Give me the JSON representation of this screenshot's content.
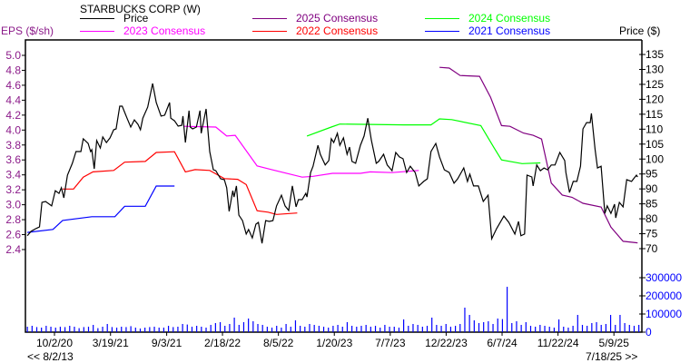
{
  "chart_data": {
    "type": "line",
    "title": "STARBUCKS CORP (W)",
    "left_axis_label": "EPS ($/sh)",
    "right_axis_label": "Price ($)",
    "date_range_start": "<< 8/2/13",
    "date_range_end": "7/18/25 >>",
    "x_unit": "decimal year",
    "x_range": [
      2020.53,
      2025.56
    ],
    "x_ticks": [
      {
        "label": "10/2/20",
        "x": 2020.753
      },
      {
        "label": "3/19/21",
        "x": 2021.214
      },
      {
        "label": "9/3/21",
        "x": 2021.676
      },
      {
        "label": "2/18/22",
        "x": 2022.135
      },
      {
        "label": "8/5/22",
        "x": 2022.595
      },
      {
        "label": "1/20/23",
        "x": 2023.055
      },
      {
        "label": "7/7/23",
        "x": 2023.515
      },
      {
        "label": "12/22/23",
        "x": 2023.975
      },
      {
        "label": "6/7/24",
        "x": 2024.435
      },
      {
        "label": "11/22/24",
        "x": 2024.895
      },
      {
        "label": "5/9/25",
        "x": 2025.355
      }
    ],
    "eps_axis": {
      "range": [
        2.4,
        5.0
      ],
      "ticks": [
        "2.4",
        "2.6",
        "2.8",
        "3.0",
        "3.2",
        "3.4",
        "3.6",
        "3.8",
        "4.0",
        "4.2",
        "4.4",
        "4.6",
        "4.8",
        "5.0"
      ]
    },
    "price_axis": {
      "range": [
        70,
        135
      ],
      "ticks": [
        "70",
        "75",
        "80",
        "85",
        "90",
        "95",
        "100",
        "105",
        "110",
        "115",
        "120",
        "125",
        "130",
        "135"
      ]
    },
    "volume_axis": {
      "range": [
        0,
        300000
      ],
      "ticks": [
        "0",
        "100000",
        "200000",
        "300000"
      ]
    },
    "colors": {
      "price": "#000000",
      "c2025": "#800080",
      "c2024": "#00ff00",
      "c2023": "#ff00ff",
      "c2022": "#ff0000",
      "c2021": "#0000ff",
      "volume": "#0000ff",
      "eps_axis": "#8b1a89"
    },
    "legend": [
      {
        "label": "Price",
        "key": "price"
      },
      {
        "label": "2025 Consensus",
        "key": "c2025"
      },
      {
        "label": "2024 Consensus",
        "key": "c2024"
      },
      {
        "label": "2023 Consensus",
        "key": "c2023"
      },
      {
        "label": "2022 Consensus",
        "key": "c2022"
      },
      {
        "label": "2021 Consensus",
        "key": "c2021"
      }
    ],
    "price": [
      [
        2020.53,
        74.3
      ],
      [
        2020.56,
        75.8
      ],
      [
        2020.6,
        76.7
      ],
      [
        2020.63,
        77.3
      ],
      [
        2020.65,
        85.5
      ],
      [
        2020.68,
        85.8
      ],
      [
        2020.73,
        84.3
      ],
      [
        2020.76,
        89.4
      ],
      [
        2020.79,
        88.5
      ],
      [
        2020.81,
        90.4
      ],
      [
        2020.83,
        87.0
      ],
      [
        2020.86,
        94.6
      ],
      [
        2020.9,
        98.6
      ],
      [
        2020.93,
        102.5
      ],
      [
        2020.97,
        102.5
      ],
      [
        2020.99,
        106.8
      ],
      [
        2021.03,
        105.2
      ],
      [
        2021.05,
        102.5
      ],
      [
        2021.06,
        103.1
      ],
      [
        2021.08,
        96.7
      ],
      [
        2021.1,
        106.2
      ],
      [
        2021.13,
        103.7
      ],
      [
        2021.15,
        107.4
      ],
      [
        2021.18,
        105.5
      ],
      [
        2021.21,
        107.1
      ],
      [
        2021.24,
        109.8
      ],
      [
        2021.26,
        110.1
      ],
      [
        2021.29,
        117.7
      ],
      [
        2021.31,
        117.7
      ],
      [
        2021.35,
        113.7
      ],
      [
        2021.38,
        110.7
      ],
      [
        2021.41,
        113.1
      ],
      [
        2021.44,
        111.6
      ],
      [
        2021.46,
        109.8
      ],
      [
        2021.48,
        113.7
      ],
      [
        2021.52,
        117.4
      ],
      [
        2021.56,
        125.3
      ],
      [
        2021.59,
        118.9
      ],
      [
        2021.63,
        114.4
      ],
      [
        2021.66,
        114.7
      ],
      [
        2021.7,
        118.9
      ],
      [
        2021.71,
        113.7
      ],
      [
        2021.74,
        112.8
      ],
      [
        2021.77,
        111.0
      ],
      [
        2021.8,
        111.3
      ],
      [
        2021.81,
        114.4
      ],
      [
        2021.83,
        105.5
      ],
      [
        2021.86,
        116.2
      ],
      [
        2021.87,
        110.7
      ],
      [
        2021.89,
        110.1
      ],
      [
        2021.92,
        110.7
      ],
      [
        2021.95,
        116.2
      ],
      [
        2021.96,
        108.6
      ],
      [
        2022.0,
        116.8
      ],
      [
        2022.03,
        102.5
      ],
      [
        2022.06,
        96.4
      ],
      [
        2022.08,
        96.1
      ],
      [
        2022.12,
        93.4
      ],
      [
        2022.15,
        93.1
      ],
      [
        2022.17,
        90.4
      ],
      [
        2022.19,
        82.5
      ],
      [
        2022.22,
        89.4
      ],
      [
        2022.23,
        87.3
      ],
      [
        2022.25,
        91.0
      ],
      [
        2022.27,
        81.2
      ],
      [
        2022.3,
        79.4
      ],
      [
        2022.33,
        74.9
      ],
      [
        2022.35,
        76.4
      ],
      [
        2022.38,
        73.6
      ],
      [
        2022.41,
        78.2
      ],
      [
        2022.43,
        78.8
      ],
      [
        2022.46,
        71.8
      ],
      [
        2022.49,
        79.4
      ],
      [
        2022.52,
        79.1
      ],
      [
        2022.55,
        79.4
      ],
      [
        2022.58,
        84.3
      ],
      [
        2022.62,
        87.9
      ],
      [
        2022.65,
        84.3
      ],
      [
        2022.68,
        82.8
      ],
      [
        2022.71,
        91.0
      ],
      [
        2022.74,
        84.0
      ],
      [
        2022.76,
        86.4
      ],
      [
        2022.79,
        86.4
      ],
      [
        2022.82,
        88.5
      ],
      [
        2022.83,
        87.3
      ],
      [
        2022.86,
        95.5
      ],
      [
        2022.88,
        97.6
      ],
      [
        2022.92,
        104.6
      ],
      [
        2022.94,
        101.6
      ],
      [
        2022.98,
        98.0
      ],
      [
        2023.01,
        99.5
      ],
      [
        2023.03,
        106.8
      ],
      [
        2023.05,
        105.5
      ],
      [
        2023.08,
        108.6
      ],
      [
        2023.1,
        104.6
      ],
      [
        2023.13,
        107.1
      ],
      [
        2023.16,
        101.6
      ],
      [
        2023.18,
        104.0
      ],
      [
        2023.2,
        99.2
      ],
      [
        2023.23,
        98.6
      ],
      [
        2023.27,
        104.6
      ],
      [
        2023.3,
        107.7
      ],
      [
        2023.33,
        113.7
      ],
      [
        2023.36,
        106.2
      ],
      [
        2023.4,
        98.6
      ],
      [
        2023.42,
        99.2
      ],
      [
        2023.46,
        101.6
      ],
      [
        2023.49,
        98.0
      ],
      [
        2023.53,
        96.1
      ],
      [
        2023.56,
        102.2
      ],
      [
        2023.59,
        100.7
      ],
      [
        2023.62,
        100.1
      ],
      [
        2023.65,
        95.5
      ],
      [
        2023.68,
        97.6
      ],
      [
        2023.72,
        95.5
      ],
      [
        2023.75,
        91.0
      ],
      [
        2023.79,
        92.5
      ],
      [
        2023.82,
        93.4
      ],
      [
        2023.85,
        102.5
      ],
      [
        2023.89,
        105.2
      ],
      [
        2023.92,
        100.7
      ],
      [
        2023.96,
        96.4
      ],
      [
        2024.0,
        95.5
      ],
      [
        2024.04,
        91.9
      ],
      [
        2024.07,
        93.4
      ],
      [
        2024.12,
        97.0
      ],
      [
        2024.15,
        92.5
      ],
      [
        2024.17,
        94.9
      ],
      [
        2024.2,
        91.0
      ],
      [
        2024.24,
        91.0
      ],
      [
        2024.28,
        85.8
      ],
      [
        2024.32,
        87.9
      ],
      [
        2024.35,
        73.3
      ],
      [
        2024.39,
        76.7
      ],
      [
        2024.45,
        80.9
      ],
      [
        2024.49,
        78.8
      ],
      [
        2024.54,
        74.9
      ],
      [
        2024.57,
        79.1
      ],
      [
        2024.59,
        74.3
      ],
      [
        2024.62,
        74.9
      ],
      [
        2024.64,
        94.6
      ],
      [
        2024.68,
        94.0
      ],
      [
        2024.69,
        91.0
      ],
      [
        2024.72,
        98.0
      ],
      [
        2024.75,
        96.1
      ],
      [
        2024.78,
        97.0
      ],
      [
        2024.81,
        96.4
      ],
      [
        2024.84,
        98.0
      ],
      [
        2024.87,
        98.0
      ],
      [
        2024.91,
        102.2
      ],
      [
        2024.95,
        99.5
      ],
      [
        2024.96,
        95.5
      ],
      [
        2024.99,
        88.8
      ],
      [
        2025.02,
        92.5
      ],
      [
        2025.05,
        92.5
      ],
      [
        2025.08,
        97.6
      ],
      [
        2025.1,
        110.1
      ],
      [
        2025.13,
        112.2
      ],
      [
        2025.16,
        112.2
      ],
      [
        2025.17,
        115.3
      ],
      [
        2025.2,
        103.1
      ],
      [
        2025.22,
        97.0
      ],
      [
        2025.25,
        97.6
      ],
      [
        2025.28,
        81.8
      ],
      [
        2025.3,
        84.3
      ],
      [
        2025.33,
        81.8
      ],
      [
        2025.36,
        84.9
      ],
      [
        2025.37,
        80.3
      ],
      [
        2025.4,
        85.5
      ],
      [
        2025.43,
        84.0
      ],
      [
        2025.46,
        93.1
      ],
      [
        2025.5,
        92.5
      ],
      [
        2025.54,
        94.6
      ],
      [
        2025.55,
        94.0
      ]
    ],
    "consensus": {
      "c2021": [
        [
          2020.53,
          2.63
        ],
        [
          2020.74,
          2.67
        ],
        [
          2020.82,
          2.79
        ],
        [
          2021.06,
          2.84
        ],
        [
          2021.25,
          2.84
        ],
        [
          2021.33,
          2.98
        ],
        [
          2021.5,
          2.98
        ],
        [
          2021.59,
          3.25
        ],
        [
          2021.74,
          3.25
        ]
      ],
      "c2022": [
        [
          2020.82,
          3.21
        ],
        [
          2020.91,
          3.21
        ],
        [
          2020.99,
          3.37
        ],
        [
          2021.07,
          3.44
        ],
        [
          2021.24,
          3.46
        ],
        [
          2021.33,
          3.57
        ],
        [
          2021.5,
          3.58
        ],
        [
          2021.59,
          3.7
        ],
        [
          2021.74,
          3.71
        ],
        [
          2021.83,
          3.44
        ],
        [
          2021.91,
          3.47
        ],
        [
          2022.03,
          3.46
        ],
        [
          2022.15,
          3.35
        ],
        [
          2022.26,
          3.34
        ],
        [
          2022.33,
          3.27
        ],
        [
          2022.42,
          2.92
        ],
        [
          2022.51,
          2.9
        ],
        [
          2022.58,
          2.87
        ],
        [
          2022.75,
          2.89
        ]
      ],
      "c2023": [
        [
          2021.82,
          4.05
        ],
        [
          2022.08,
          4.04
        ],
        [
          2022.17,
          3.92
        ],
        [
          2022.24,
          3.93
        ],
        [
          2022.42,
          3.52
        ],
        [
          2022.54,
          3.47
        ],
        [
          2022.79,
          3.37
        ],
        [
          2022.88,
          3.38
        ],
        [
          2023.04,
          3.42
        ],
        [
          2023.27,
          3.42
        ],
        [
          2023.35,
          3.44
        ],
        [
          2023.53,
          3.43
        ],
        [
          2023.75,
          3.46
        ]
      ],
      "c2024": [
        [
          2022.83,
          3.92
        ],
        [
          2023.03,
          4.04
        ],
        [
          2023.1,
          4.08
        ],
        [
          2023.63,
          4.07
        ],
        [
          2023.85,
          4.07
        ],
        [
          2023.92,
          4.15
        ],
        [
          2024.02,
          4.14
        ],
        [
          2024.26,
          4.06
        ],
        [
          2024.37,
          3.76
        ],
        [
          2024.43,
          3.6
        ],
        [
          2024.6,
          3.55
        ],
        [
          2024.75,
          3.56
        ]
      ],
      "c2025": [
        [
          2023.92,
          4.84
        ],
        [
          2024.0,
          4.83
        ],
        [
          2024.09,
          4.73
        ],
        [
          2024.25,
          4.72
        ],
        [
          2024.34,
          4.44
        ],
        [
          2024.43,
          4.06
        ],
        [
          2024.5,
          4.05
        ],
        [
          2024.61,
          3.96
        ],
        [
          2024.69,
          3.93
        ],
        [
          2024.76,
          3.88
        ],
        [
          2024.84,
          3.29
        ],
        [
          2024.93,
          3.13
        ],
        [
          2025.01,
          3.1
        ],
        [
          2025.1,
          3.02
        ],
        [
          2025.25,
          2.97
        ],
        [
          2025.33,
          2.7
        ],
        [
          2025.43,
          2.51
        ],
        [
          2025.55,
          2.49
        ]
      ]
    },
    "volume": [
      30000,
      35000,
      28000,
      25000,
      35000,
      30000,
      25000,
      30000,
      28000,
      35000,
      30000,
      22000,
      28000,
      30000,
      40000,
      22000,
      30000,
      45000,
      28000,
      25000,
      30000,
      28000,
      33000,
      25000,
      20000,
      25000,
      28000,
      30000,
      25000,
      25000,
      35000,
      28000,
      30000,
      45000,
      42000,
      30000,
      35000,
      30000,
      25000,
      40000,
      50000,
      55000,
      35000,
      45000,
      80000,
      40000,
      55000,
      75000,
      60000,
      45000,
      40000,
      30000,
      25000,
      35000,
      25000,
      45000,
      30000,
      65000,
      35000,
      30000,
      45000,
      40000,
      35000,
      30000,
      25000,
      35000,
      40000,
      30000,
      55000,
      35000,
      30000,
      35000,
      40000,
      30000,
      35000,
      25000,
      40000,
      30000,
      30000,
      25000,
      70000,
      35000,
      45000,
      40000,
      30000,
      35000,
      80000,
      40000,
      35000,
      45000,
      30000,
      35000,
      45000,
      135000,
      95000,
      65000,
      50000,
      55000,
      60000,
      45000,
      75000,
      72000,
      250000,
      50000,
      60000,
      40000,
      55000,
      35000,
      30000,
      40000,
      35000,
      30000,
      25000,
      70000,
      30000,
      25000,
      35000,
      95000,
      40000,
      35000,
      50000,
      55000,
      40000,
      45000,
      95000,
      40000,
      95000,
      50000,
      40000,
      35000,
      40000
    ]
  }
}
